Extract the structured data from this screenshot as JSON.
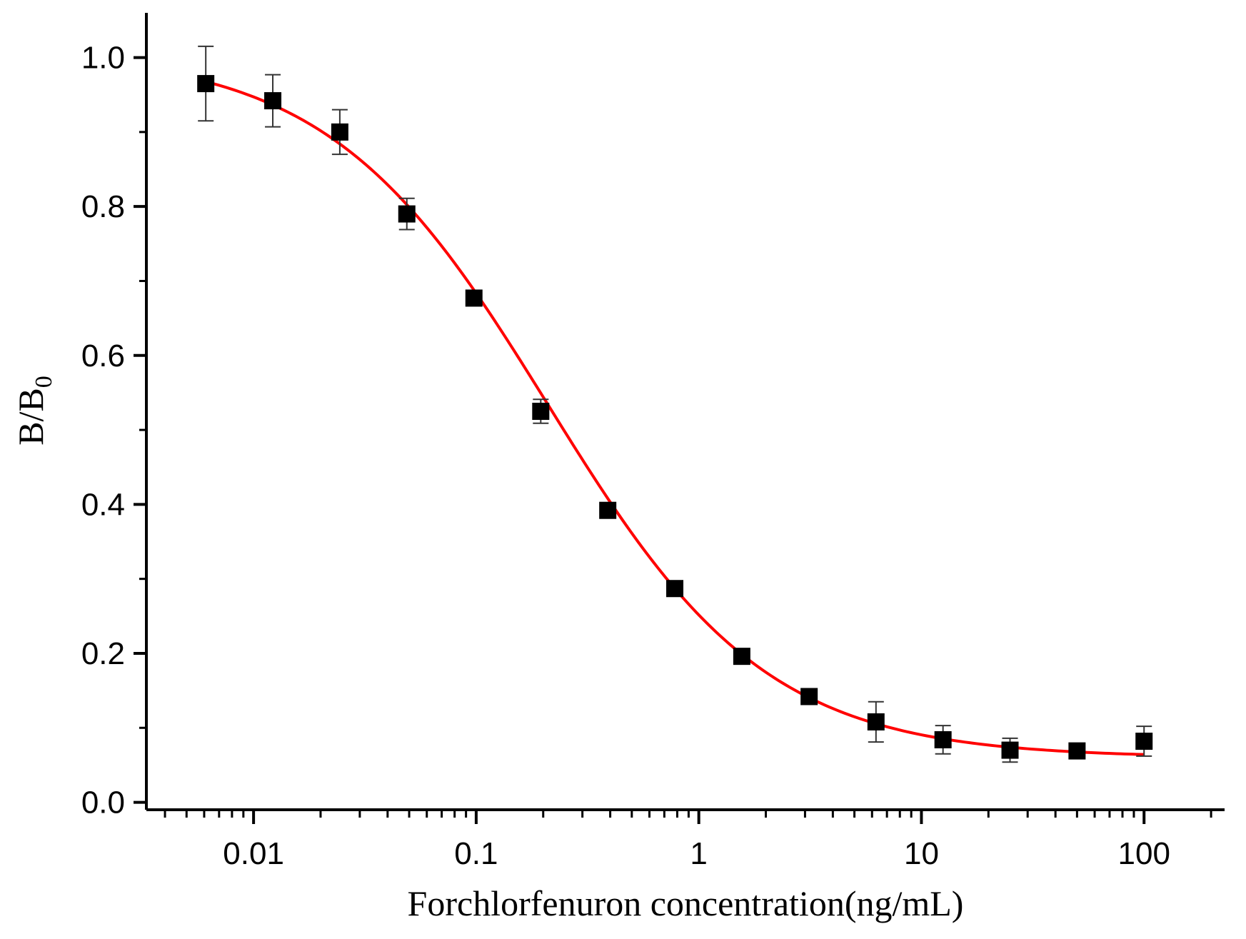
{
  "chart_data": {
    "type": "scatter",
    "title": "",
    "xlabel": "Forchlorfenuron concentration(ng/mL)",
    "ylabel": {
      "main": "B/B",
      "subscript": "0"
    },
    "x_scale": "log",
    "xlim": [
      0.0033,
      230
    ],
    "ylim": [
      -0.01,
      1.06
    ],
    "x_ticks": [
      {
        "value": 0.01,
        "label": "0.01"
      },
      {
        "value": 0.1,
        "label": "0.1"
      },
      {
        "value": 1,
        "label": "1"
      },
      {
        "value": 10,
        "label": "10"
      },
      {
        "value": 100,
        "label": "100"
      }
    ],
    "y_ticks": [
      {
        "value": 0.0,
        "label": "0.0"
      },
      {
        "value": 0.2,
        "label": "0.2"
      },
      {
        "value": 0.4,
        "label": "0.4"
      },
      {
        "value": 0.6,
        "label": "0.6"
      },
      {
        "value": 0.8,
        "label": "0.8"
      },
      {
        "value": 1.0,
        "label": "1.0"
      }
    ],
    "grid": false,
    "legend": "none",
    "series": [
      {
        "kind": "points_with_error_bars",
        "marker": "square",
        "color": "#000000",
        "x": [
          0.0061,
          0.0122,
          0.0244,
          0.0488,
          0.0977,
          0.195,
          0.39,
          0.78,
          1.56,
          3.13,
          6.25,
          12.5,
          25,
          50,
          100
        ],
        "y": [
          0.965,
          0.942,
          0.9,
          0.79,
          0.677,
          0.525,
          0.392,
          0.287,
          0.196,
          0.142,
          0.108,
          0.084,
          0.07,
          0.069,
          0.082
        ],
        "error": [
          0.05,
          0.035,
          0.03,
          0.021,
          0.008,
          0.016,
          0.009,
          0.006,
          0.01,
          0.007,
          0.027,
          0.019,
          0.016,
          0.006,
          0.02
        ]
      },
      {
        "kind": "fit_curve",
        "model": "four_parameter_logistic",
        "color": "#ff0000",
        "x_range": [
          0.0064,
          100
        ],
        "params": {
          "top": 1.008,
          "bottom": 0.06,
          "ic50": 0.21,
          "hill": 0.88
        }
      }
    ]
  }
}
